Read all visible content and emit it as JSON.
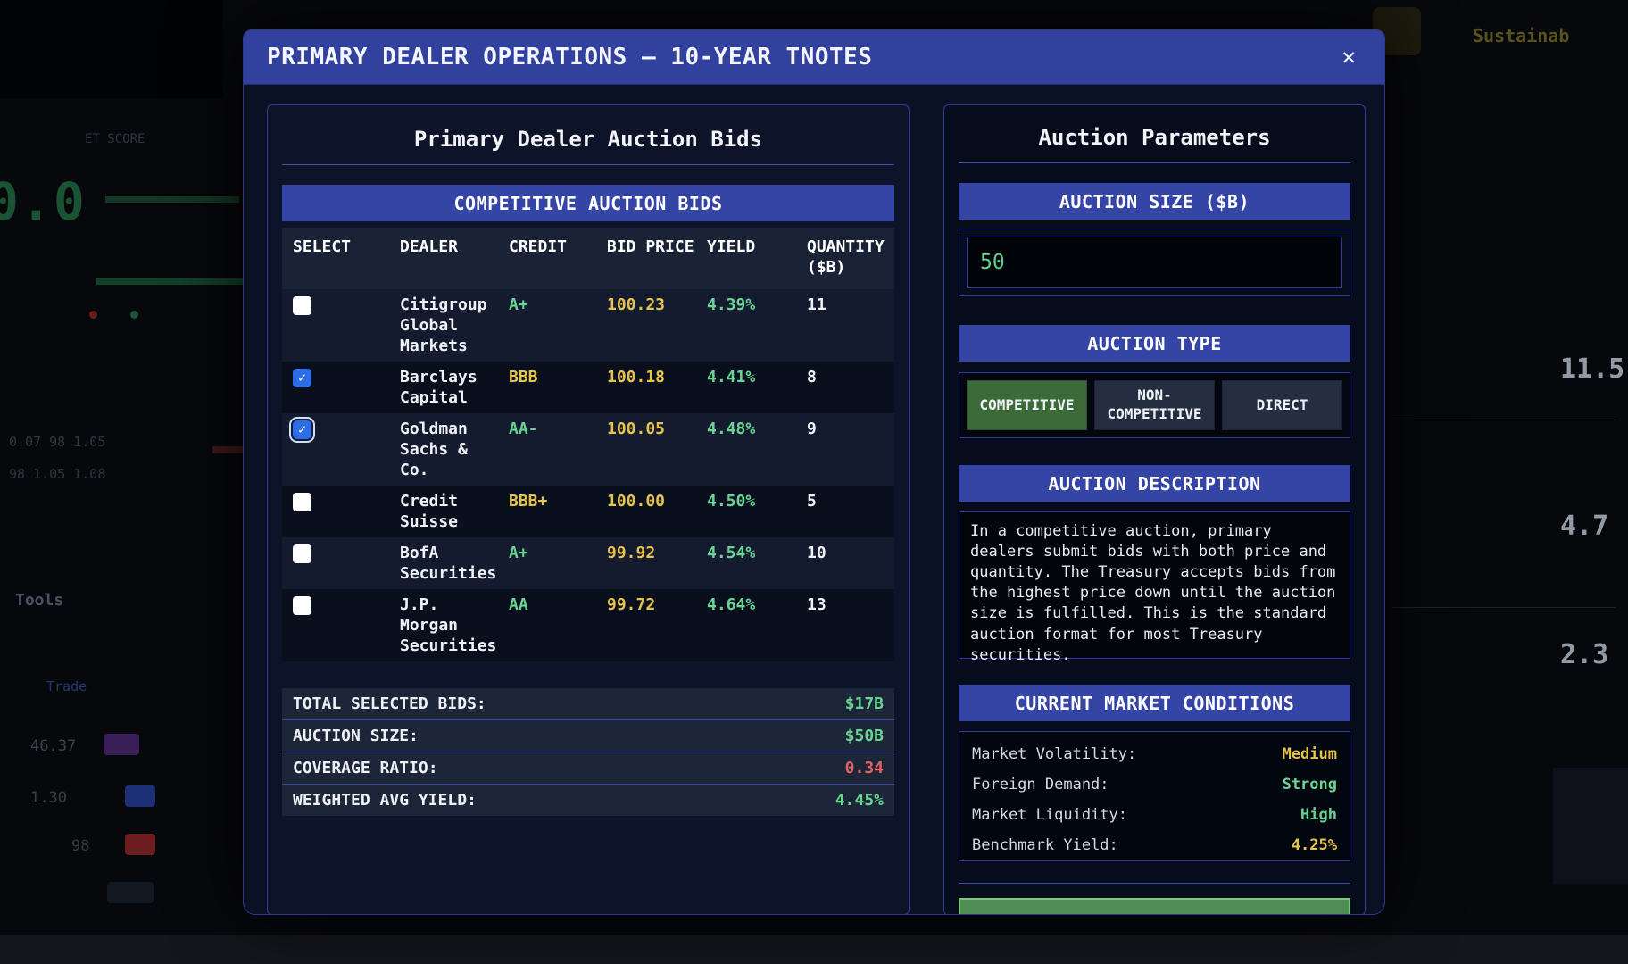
{
  "modal": {
    "title": "PRIMARY DEALER OPERATIONS — 10-YEAR TNOTES",
    "close_icon": "✕"
  },
  "bids_panel": {
    "title": "Primary Dealer Auction Bids",
    "table_banner": "COMPETITIVE AUCTION BIDS",
    "check_glyph": "✓",
    "columns": [
      "SELECT",
      "DEALER",
      "CREDIT",
      "BID PRICE",
      "YIELD",
      "QUANTITY ($B)"
    ],
    "rows": [
      {
        "dealer": "Citigroup Global Markets",
        "credit": "A+",
        "credit_color": "green",
        "bid_price": "100.23",
        "yield": "4.39%",
        "quantity": "11",
        "checked": false,
        "focused": false
      },
      {
        "dealer": "Barclays Capital",
        "credit": "BBB",
        "credit_color": "yellow",
        "bid_price": "100.18",
        "yield": "4.41%",
        "quantity": "8",
        "checked": true,
        "focused": false
      },
      {
        "dealer": "Goldman Sachs & Co.",
        "credit": "AA-",
        "credit_color": "green",
        "bid_price": "100.05",
        "yield": "4.48%",
        "quantity": "9",
        "checked": true,
        "focused": true
      },
      {
        "dealer": "Credit Suisse",
        "credit": "BBB+",
        "credit_color": "yellow",
        "bid_price": "100.00",
        "yield": "4.50%",
        "quantity": "5",
        "checked": false,
        "focused": false
      },
      {
        "dealer": "BofA Securities",
        "credit": "A+",
        "credit_color": "green",
        "bid_price": "99.92",
        "yield": "4.54%",
        "quantity": "10",
        "checked": false,
        "focused": false
      },
      {
        "dealer": "J.P. Morgan Securities",
        "credit": "AA",
        "credit_color": "green",
        "bid_price": "99.72",
        "yield": "4.64%",
        "quantity": "13",
        "checked": false,
        "focused": false
      }
    ],
    "summary": [
      {
        "label": "TOTAL SELECTED BIDS:",
        "value": "$17B",
        "color": "green"
      },
      {
        "label": "AUCTION SIZE:",
        "value": "$50B",
        "color": "green"
      },
      {
        "label": "COVERAGE RATIO:",
        "value": "0.34",
        "color": "red"
      },
      {
        "label": "WEIGHTED AVG YIELD:",
        "value": "4.45%",
        "color": "green"
      }
    ]
  },
  "params_panel": {
    "title": "Auction Parameters",
    "size_header": "AUCTION SIZE ($B)",
    "size_value": "50",
    "type_header": "AUCTION TYPE",
    "type_options": [
      {
        "label": "COMPETITIVE",
        "selected": true
      },
      {
        "label": "NON-COMPETITIVE",
        "selected": false
      },
      {
        "label": "DIRECT",
        "selected": false
      }
    ],
    "description_header": "AUCTION DESCRIPTION",
    "description": "In a competitive auction, primary dealers submit bids with both price and quantity. The Treasury accepts bids from the highest price down until the auction size is fulfilled. This is the standard auction format for most Treasury securities.",
    "conditions_header": "CURRENT MARKET CONDITIONS",
    "conditions": [
      {
        "label": "Market Volatility:",
        "value": "Medium",
        "color": "yellow"
      },
      {
        "label": "Foreign Demand:",
        "value": "Strong",
        "color": "green"
      },
      {
        "label": "Market Liquidity:",
        "value": "High",
        "color": "green"
      },
      {
        "label": "Benchmark Yield:",
        "value": "4.25%",
        "color": "yellow"
      }
    ]
  },
  "background": {
    "score_label": "ET SCORE",
    "big_value": "0.0",
    "numrow1": "0.07   98   1.05",
    "numrow2": "98   1.05   1.08",
    "tools_label": "Tools",
    "trade_label": "Trade",
    "val1": "46.37",
    "val2": "1.30",
    "val3": "98",
    "brand_label": "Sustainab",
    "right_values": [
      "11.5",
      "4.7",
      "2.3"
    ]
  },
  "colors": {
    "green": "#68d593",
    "yellow": "#e5c44c",
    "red": "#e26262",
    "accent_blue": "#3445a6",
    "titlebar_blue": "#32419e",
    "selected_green": "#3c6a39"
  }
}
